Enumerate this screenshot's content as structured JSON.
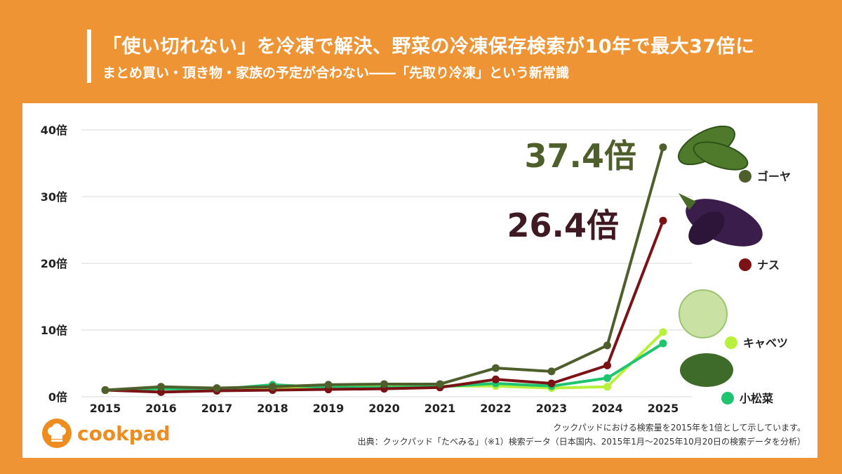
{
  "header": {
    "title": "「使い切れない」を冷凍で解決、野菜の冷凍保存検索が10年で最大37倍に",
    "subtitle": "まとめ買い・頂き物・家族の予定が合わない――「先取り冷凍」という新常識"
  },
  "chart_data": {
    "type": "line",
    "x": [
      "2015",
      "2016",
      "2017",
      "2018",
      "2019",
      "2020",
      "2021",
      "2022",
      "2023",
      "2024",
      "2025"
    ],
    "ylim": [
      0,
      40
    ],
    "yticks": [
      0,
      10,
      20,
      30,
      40
    ],
    "ytick_labels": [
      "0倍",
      "10倍",
      "20倍",
      "30倍",
      "40倍"
    ],
    "grid": "horizontal",
    "series": [
      {
        "name": "ゴーヤ",
        "color": "#4e5f2c",
        "values": [
          1.0,
          1.5,
          1.3,
          1.5,
          1.8,
          1.9,
          1.9,
          4.3,
          3.8,
          7.7,
          37.4
        ]
      },
      {
        "name": "ナス",
        "color": "#7a1216",
        "values": [
          1.0,
          0.7,
          0.9,
          1.0,
          1.1,
          1.2,
          1.4,
          2.6,
          2.0,
          4.7,
          26.4
        ]
      },
      {
        "name": "キャベツ",
        "color": "#b8f03c",
        "values": [
          1.0,
          1.3,
          1.2,
          1.4,
          1.5,
          1.5,
          1.6,
          1.6,
          1.3,
          1.5,
          9.7
        ]
      },
      {
        "name": "小松菜",
        "color": "#1fc46e",
        "values": [
          1.0,
          1.2,
          1.1,
          1.8,
          1.4,
          1.4,
          1.5,
          2.0,
          1.6,
          2.8,
          8.0
        ]
      }
    ],
    "annotations": [
      {
        "text": "37.4倍",
        "series": "ゴーヤ",
        "color": "#4e5f2c"
      },
      {
        "text": "26.4倍",
        "series": "ナス",
        "color": "#3f1a22"
      }
    ],
    "legend_position": "right"
  },
  "notes": {
    "line1": "クックパッドにおける検索量を2015年を1倍として示しています。",
    "line2": "出典：クックパッド「たべみる」（※1）検索データ（日本国内、2015年1月〜2025年10月20日の検索データを分析）"
  },
  "logo": {
    "text": "cookpad",
    "icon": "chef-hat-icon"
  }
}
